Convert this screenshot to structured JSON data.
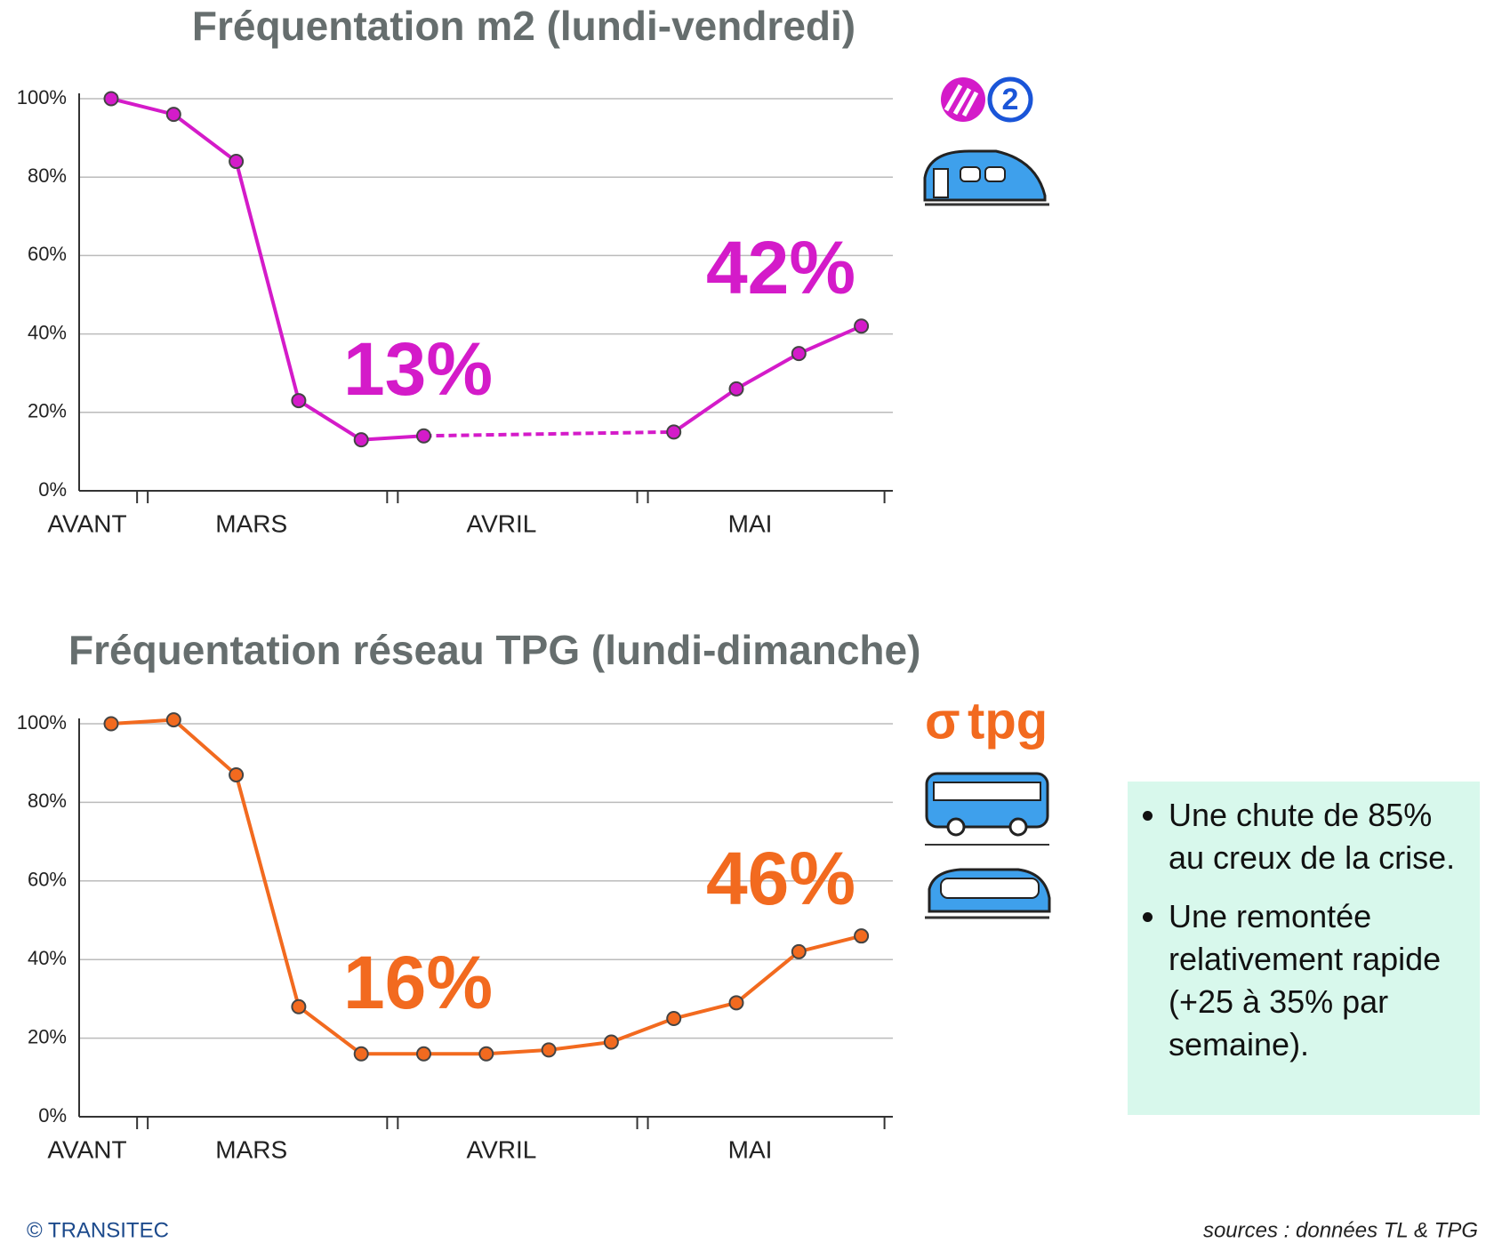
{
  "chart_data": [
    {
      "type": "line",
      "title": "Fréquentation m2 (lundi-vendredi)",
      "categories": [
        null,
        null,
        null,
        null,
        null,
        null,
        null,
        null,
        null,
        null,
        null,
        null,
        null
      ],
      "x_groups": [
        {
          "label": "AVANT",
          "start": 0,
          "end": 0
        },
        {
          "label": "MARS",
          "start": 1,
          "end": 4
        },
        {
          "label": "AVRIL",
          "start": 5,
          "end": 8
        },
        {
          "label": "MAI",
          "start": 9,
          "end": 12
        }
      ],
      "series": [
        {
          "name": "m2",
          "color": "#d41bc9",
          "values": [
            100,
            96,
            84,
            23,
            13,
            14,
            null,
            null,
            null,
            15,
            26,
            35,
            42
          ]
        }
      ],
      "ylim": [
        0,
        100
      ],
      "yticks": [
        {
          "value": 0,
          "label": "0%"
        },
        {
          "value": 20,
          "label": "20%"
        },
        {
          "value": 40,
          "label": "40%"
        },
        {
          "value": 60,
          "label": "60%"
        },
        {
          "value": 80,
          "label": "80%"
        },
        {
          "value": 100,
          "label": "100%"
        }
      ],
      "grid": true,
      "annotations": [
        "13%",
        "42%"
      ],
      "logo": "2"
    },
    {
      "type": "line",
      "title": "Fréquentation réseau TPG (lundi-dimanche)",
      "categories": [
        null,
        null,
        null,
        null,
        null,
        null,
        null,
        null,
        null,
        null,
        null,
        null,
        null
      ],
      "x_groups": [
        {
          "label": "AVANT",
          "start": 0,
          "end": 0
        },
        {
          "label": "MARS",
          "start": 1,
          "end": 4
        },
        {
          "label": "AVRIL",
          "start": 5,
          "end": 8
        },
        {
          "label": "MAI",
          "start": 9,
          "end": 12
        }
      ],
      "series": [
        {
          "name": "TPG",
          "color": "#f26a1f",
          "values": [
            100,
            101,
            87,
            28,
            16,
            16,
            16,
            17,
            19,
            25,
            29,
            42,
            46
          ]
        }
      ],
      "ylim": [
        0,
        100
      ],
      "yticks": [
        {
          "value": 0,
          "label": "0%"
        },
        {
          "value": 20,
          "label": "20%"
        },
        {
          "value": 40,
          "label": "40%"
        },
        {
          "value": 60,
          "label": "60%"
        },
        {
          "value": 80,
          "label": "80%"
        },
        {
          "value": 100,
          "label": "100%"
        }
      ],
      "grid": true,
      "annotations": [
        "16%",
        "46%"
      ],
      "logo": "tpg"
    }
  ],
  "notes": [
    "Une chute de 85% au creux de la crise.",
    "Une remontée relativement rapide (+25 à 35% par semaine)."
  ],
  "footer": {
    "copyright": "© TRANSITEC",
    "sources": "sources : données TL & TPG"
  }
}
